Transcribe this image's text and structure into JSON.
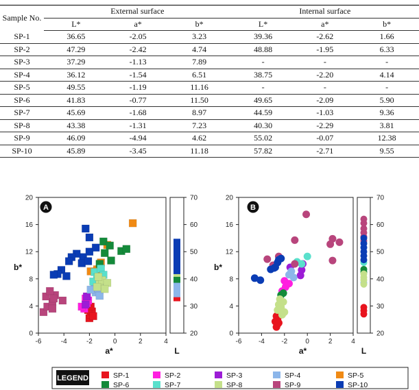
{
  "table": {
    "headers": {
      "sample": "Sample No.",
      "external": "External surface",
      "internal": "Internal surface",
      "sub": [
        "L*",
        "a*",
        "b*",
        "L*",
        "a*",
        "b*"
      ]
    },
    "rows": [
      [
        "SP-1",
        "36.65",
        "-2.05",
        "3.23",
        "39.36",
        "-2.62",
        "1.66"
      ],
      [
        "SP-2",
        "47.29",
        "-2.42",
        "4.74",
        "48.88",
        "-1.95",
        "6.33"
      ],
      [
        "SP-3",
        "37.29",
        "-1.13",
        "7.89",
        "-",
        "-",
        "-"
      ],
      [
        "SP-4",
        "36.12",
        "-1.54",
        "6.51",
        "38.75",
        "-2.20",
        "4.14"
      ],
      [
        "SP-5",
        "49.55",
        "-1.19",
        "11.16",
        "-",
        "-",
        "-"
      ],
      [
        "SP-6",
        "41.83",
        "-0.77",
        "11.50",
        "49.65",
        "-2.09",
        "5.90"
      ],
      [
        "SP-7",
        "45.69",
        "-1.68",
        "8.97",
        "44.59",
        "-1.03",
        "9.36"
      ],
      [
        "SP-8",
        "43.38",
        "-1.31",
        "7.23",
        "40.30",
        "-2.29",
        "3.81"
      ],
      [
        "SP-9",
        "46.09",
        "-4.94",
        "4.62",
        "55.02",
        "-0.07",
        "12.38"
      ],
      [
        "SP-10",
        "45.89",
        "-3.45",
        "11.18",
        "57.82",
        "-2.71",
        "9.55"
      ]
    ]
  },
  "chart_data": [
    {
      "type": "scatter",
      "panel": "A",
      "marker": "square",
      "xlabel": "a*",
      "ylabel": "b*",
      "sidelabel": "L",
      "xlim": [
        -6,
        4
      ],
      "ylim": [
        0,
        20
      ],
      "llim": [
        20,
        70
      ],
      "xticks": [
        "-6",
        "-4",
        "-2",
        "0",
        "2",
        "4"
      ],
      "yticks": [
        "0",
        "4",
        "8",
        "12",
        "16",
        "20"
      ],
      "lticks": [
        "20",
        "30",
        "40",
        "50",
        "60",
        "70"
      ],
      "series": [
        {
          "key": "SP-1",
          "color": "#e8141e",
          "points": [
            [
              -2.0,
              2.2
            ],
            [
              -1.9,
              2.7
            ],
            [
              -1.8,
              3.2
            ],
            [
              -2.1,
              3.4
            ],
            [
              -1.9,
              3.9
            ],
            [
              -1.7,
              2.5
            ]
          ],
          "L": [
            33,
            35,
            36.5
          ]
        },
        {
          "key": "SP-2",
          "color": "#ff1fe0",
          "points": [
            [
              -2.4,
              3.6
            ],
            [
              -2.2,
              4.4
            ],
            [
              -2.3,
              5.1
            ],
            [
              -2.6,
              3.9
            ],
            [
              -2.1,
              4.8
            ]
          ],
          "L": [
            37,
            38
          ]
        },
        {
          "key": "SP-3",
          "color": "#9c1cd6",
          "points": [
            [
              -2.3,
              4.2
            ],
            [
              -2.2,
              5.4
            ]
          ],
          "L": [
            36
          ]
        },
        {
          "key": "SP-4",
          "color": "#8cb6ea",
          "points": [
            [
              -1.5,
              6.0
            ],
            [
              -1.3,
              6.6
            ],
            [
              -1.6,
              7.2
            ],
            [
              -1.2,
              5.5
            ],
            [
              -1.9,
              6.4
            ],
            [
              -1.1,
              7.6
            ]
          ],
          "L": [
            34.5,
            35.5,
            36.8,
            37.8
          ]
        },
        {
          "key": "SP-5",
          "color": "#f08a14",
          "points": [
            [
              1.4,
              16.2
            ],
            [
              -0.6,
              13.0
            ],
            [
              -1.1,
              10.4
            ],
            [
              -1.4,
              9.4
            ],
            [
              -1.9,
              9.1
            ]
          ],
          "L": [
            52.5,
            51.5
          ]
        },
        {
          "key": "SP-6",
          "color": "#148a3a",
          "points": [
            [
              -0.9,
              13.5
            ],
            [
              -0.4,
              12.9
            ],
            [
              0.5,
              12.1
            ],
            [
              0.9,
              12.4
            ],
            [
              -0.3,
              10.7
            ],
            [
              -0.8,
              11.8
            ],
            [
              -1.2,
              10.2
            ]
          ],
          "L": [
            39.8,
            41.5
          ]
        },
        {
          "key": "SP-7",
          "color": "#5ae0cc",
          "points": [
            [
              -1.6,
              9.0
            ],
            [
              -1.4,
              8.2
            ],
            [
              -1.1,
              9.5
            ],
            [
              -1.7,
              7.6
            ],
            [
              -0.9,
              8.6
            ]
          ],
          "L": [
            44.5
          ]
        },
        {
          "key": "SP-8",
          "color": "#c4e08a",
          "points": [
            [
              -1.2,
              7.2
            ],
            [
              -1.0,
              7.8
            ],
            [
              -0.6,
              7.4
            ],
            [
              -1.4,
              6.8
            ],
            [
              -0.8,
              6.5
            ],
            [
              -1.3,
              8.3
            ]
          ],
          "L": [
            42,
            43.5
          ]
        },
        {
          "key": "SP-9",
          "color": "#b8457c",
          "points": [
            [
              -5.6,
              3.1
            ],
            [
              -5.3,
              3.9
            ],
            [
              -4.9,
              4.6
            ],
            [
              -5.4,
              5.4
            ],
            [
              -4.7,
              5.6
            ],
            [
              -4.1,
              4.8
            ],
            [
              -4.9,
              3.6
            ],
            [
              -5.1,
              6.2
            ],
            [
              -4.8,
              5.1
            ]
          ],
          "L": []
        },
        {
          "key": "SP-10",
          "color": "#0a3cb4",
          "points": [
            [
              -2.3,
              15.4
            ],
            [
              -2.0,
              14.1
            ],
            [
              -2.5,
              11.2
            ],
            [
              -3.0,
              11.7
            ],
            [
              -3.4,
              11.2
            ],
            [
              -2.6,
              10.3
            ],
            [
              -3.6,
              10.6
            ],
            [
              -2.0,
              12.0
            ],
            [
              -1.5,
              12.6
            ],
            [
              -4.2,
              9.3
            ],
            [
              -4.5,
              8.7
            ],
            [
              -4.8,
              8.6
            ],
            [
              -3.8,
              8.4
            ],
            [
              -2.1,
              10.6
            ]
          ],
          "L": [
            43,
            44.5,
            46,
            47.5,
            49,
            50.5,
            52,
            53.5
          ]
        }
      ]
    },
    {
      "type": "scatter",
      "panel": "B",
      "marker": "circle",
      "xlabel": "a*",
      "ylabel": "b*",
      "sidelabel": "L",
      "xlim": [
        -6,
        4
      ],
      "ylim": [
        0,
        20
      ],
      "llim": [
        20,
        70
      ],
      "xticks": [
        "-6",
        "-4",
        "-2",
        "0",
        "2",
        "4"
      ],
      "yticks": [
        "0",
        "4",
        "8",
        "12",
        "16",
        "20"
      ],
      "lticks": [
        "20",
        "30",
        "40",
        "50",
        "60",
        "70"
      ],
      "series": [
        {
          "key": "SP-1",
          "color": "#e8141e",
          "points": [
            [
              -2.7,
              0.9
            ],
            [
              -2.6,
              1.3
            ],
            [
              -2.8,
              1.7
            ],
            [
              -2.6,
              2.1
            ],
            [
              -2.7,
              2.5
            ],
            [
              -2.5,
              1.5
            ]
          ],
          "L": [
            27,
            28.3,
            29.5
          ]
        },
        {
          "key": "SP-2",
          "color": "#ff1fe0",
          "points": [
            [
              -2.2,
              6.2
            ],
            [
              -1.9,
              6.8
            ],
            [
              -1.6,
              7.3
            ],
            [
              -2.0,
              7.7
            ]
          ],
          "L": []
        },
        {
          "key": "SP-3",
          "color": "#9c1cd6",
          "points": [
            [
              -0.6,
              8.5
            ],
            [
              -0.5,
              9.3
            ],
            [
              -1.5,
              9.7
            ],
            [
              -0.4,
              10.2
            ]
          ],
          "L": []
        },
        {
          "key": "SP-4",
          "color": "#8cb6ea",
          "points": [
            [
              -1.6,
              8.6
            ],
            [
              -1.2,
              8.2
            ],
            [
              -1.4,
              9.1
            ]
          ],
          "L": [
            38.5
          ]
        },
        {
          "key": "SP-5",
          "color": "#f08a14",
          "points": [],
          "L": []
        },
        {
          "key": "SP-6",
          "color": "#148a3a",
          "points": [
            [
              -2.1,
              5.9
            ],
            [
              -2.3,
              5.6
            ]
          ],
          "L": [
            42.5,
            43.5
          ]
        },
        {
          "key": "SP-7",
          "color": "#5ae0cc",
          "points": [
            [
              0.0,
              11.3
            ],
            [
              -0.9,
              10.5
            ],
            [
              -0.5,
              10.2
            ]
          ],
          "L": [
            46
          ]
        },
        {
          "key": "SP-8",
          "color": "#c4e08a",
          "points": [
            [
              -2.3,
              3.8
            ],
            [
              -2.6,
              3.4
            ],
            [
              -2.5,
              4.2
            ],
            [
              -2.1,
              4.6
            ],
            [
              -2.0,
              3.1
            ],
            [
              -2.2,
              2.7
            ],
            [
              -2.4,
              5.0
            ]
          ],
          "L": [
            38,
            39.5,
            40.5,
            41.8
          ]
        },
        {
          "key": "SP-9",
          "color": "#b8457c",
          "points": [
            [
              -0.1,
              17.5
            ],
            [
              2.2,
              13.9
            ],
            [
              2.8,
              13.4
            ],
            [
              2.0,
              13.1
            ],
            [
              2.2,
              10.7
            ],
            [
              -1.1,
              13.7
            ],
            [
              -3.0,
              10.0
            ],
            [
              -3.5,
              10.9
            ],
            [
              -2.5,
              11.3
            ],
            [
              -1.1,
              10.2
            ]
          ],
          "L": [
            54,
            55.5,
            57,
            58.5,
            60.5,
            62
          ]
        },
        {
          "key": "SP-10",
          "color": "#0a3cb4",
          "points": [
            [
              -4.6,
              8.1
            ],
            [
              -4.1,
              7.8
            ],
            [
              -3.2,
              9.4
            ],
            [
              -2.9,
              9.6
            ],
            [
              -2.6,
              10.4
            ],
            [
              -2.3,
              11.0
            ],
            [
              -2.5,
              10.8
            ],
            [
              -2.8,
              9.7
            ]
          ],
          "L": [
            47,
            48.5,
            50,
            51.5,
            53,
            55
          ]
        }
      ]
    }
  ],
  "legend": {
    "title": "LEGEND",
    "items": [
      {
        "label": "SP-1",
        "color": "#e8141e"
      },
      {
        "label": "SP-2",
        "color": "#ff1fe0"
      },
      {
        "label": "SP-3",
        "color": "#9c1cd6"
      },
      {
        "label": "SP-4",
        "color": "#8cb6ea"
      },
      {
        "label": "SP-5",
        "color": "#f08a14"
      },
      {
        "label": "SP-6",
        "color": "#148a3a"
      },
      {
        "label": "SP-7",
        "color": "#5ae0cc"
      },
      {
        "label": "SP-8",
        "color": "#c4e08a"
      },
      {
        "label": "SP-9",
        "color": "#b8457c"
      },
      {
        "label": "SP-10",
        "color": "#0a3cb4"
      }
    ]
  }
}
